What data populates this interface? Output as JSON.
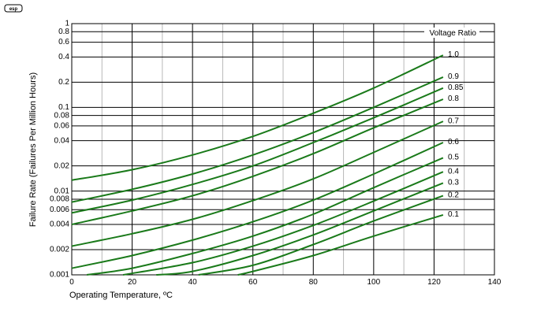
{
  "logo": {
    "text": "esp"
  },
  "chart_data": {
    "type": "line",
    "title": "",
    "xlabel": "Operating Temperature, ºC",
    "ylabel": "Failure Rate (Failures Per Million Hours)",
    "xlim": [
      0,
      140
    ],
    "ylim": [
      0.001,
      1
    ],
    "y_scale": "log",
    "grid": true,
    "legend_title": "Voltage Ratio",
    "legend_placement": "right, labels at line ends",
    "line_color": "#1a7a1a",
    "x_ticks": [
      "0",
      "20",
      "40",
      "60",
      "80",
      "100",
      "120",
      "140"
    ],
    "x_tick_values": [
      0,
      20,
      40,
      60,
      80,
      100,
      120,
      140
    ],
    "y_ticks": [
      "0.001",
      "0.002",
      "0.004",
      "0.006",
      "0.008",
      "0.01",
      "0.02",
      "0.04",
      "0.06",
      "0.08",
      "0.1",
      "0.2",
      "0.4",
      "0.6",
      "0.8",
      "1"
    ],
    "y_tick_values": [
      0.001,
      0.002,
      0.004,
      0.006,
      0.008,
      0.01,
      0.02,
      0.04,
      0.06,
      0.08,
      0.1,
      0.2,
      0.4,
      0.6,
      0.8,
      1
    ],
    "series": [
      {
        "name": "1.0",
        "x": [
          0,
          20,
          40,
          60,
          80,
          100,
          123
        ],
        "y": [
          0.0135,
          0.018,
          0.027,
          0.045,
          0.085,
          0.17,
          0.42
        ]
      },
      {
        "name": "0.9",
        "x": [
          0,
          20,
          40,
          60,
          80,
          100,
          123
        ],
        "y": [
          0.0074,
          0.0105,
          0.016,
          0.027,
          0.05,
          0.1,
          0.23
        ]
      },
      {
        "name": "0.85",
        "x": [
          0,
          20,
          40,
          60,
          80,
          100,
          123
        ],
        "y": [
          0.0055,
          0.0078,
          0.012,
          0.02,
          0.038,
          0.075,
          0.17
        ]
      },
      {
        "name": "0.8",
        "x": [
          0,
          20,
          40,
          60,
          80,
          100,
          123
        ],
        "y": [
          0.004,
          0.0058,
          0.0088,
          0.015,
          0.028,
          0.057,
          0.125
        ]
      },
      {
        "name": "0.7",
        "x": [
          0,
          20,
          40,
          60,
          80,
          100,
          123
        ],
        "y": [
          0.0022,
          0.0031,
          0.0046,
          0.0077,
          0.014,
          0.029,
          0.068
        ]
      },
      {
        "name": "0.6",
        "x": [
          0,
          20,
          40,
          60,
          80,
          100,
          123
        ],
        "y": [
          0.0012,
          0.0017,
          0.0026,
          0.0043,
          0.0078,
          0.016,
          0.038
        ]
      },
      {
        "name": "0.5",
        "x": [
          5,
          20,
          40,
          60,
          80,
          100,
          123
        ],
        "y": [
          0.001,
          0.0012,
          0.0018,
          0.0029,
          0.0053,
          0.011,
          0.025
        ]
      },
      {
        "name": "0.4",
        "x": [
          17,
          40,
          60,
          80,
          100,
          123
        ],
        "y": [
          0.001,
          0.0014,
          0.0022,
          0.0039,
          0.0076,
          0.017
        ]
      },
      {
        "name": "0.3",
        "x": [
          28,
          40,
          60,
          80,
          100,
          123
        ],
        "y": [
          0.001,
          0.0011,
          0.0017,
          0.003,
          0.0058,
          0.0125
        ]
      },
      {
        "name": "0.2",
        "x": [
          42,
          60,
          80,
          100,
          123
        ],
        "y": [
          0.001,
          0.0013,
          0.0023,
          0.0044,
          0.0088
        ]
      },
      {
        "name": "0.1",
        "x": [
          55,
          60,
          80,
          100,
          123
        ],
        "y": [
          0.001,
          0.0011,
          0.0017,
          0.0029,
          0.0052
        ]
      }
    ]
  }
}
